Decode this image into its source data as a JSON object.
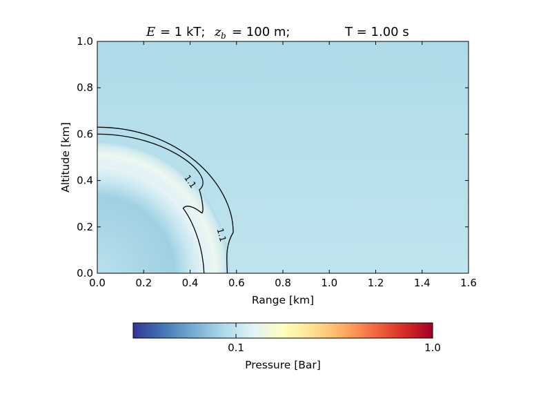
{
  "chart_data": {
    "type": "heatmap",
    "title": {
      "energy_symbol": "E",
      "energy_value": "= 1 kT;",
      "burst_symbol": "z",
      "burst_subscript": "b",
      "burst_value": "= 100 m;",
      "time_text": "T =  1.00 s"
    },
    "xlabel": "Range [km]",
    "ylabel": "Altitude [km]",
    "xlim": [
      0.0,
      1.6
    ],
    "ylim": [
      0.0,
      1.0
    ],
    "xticks": [
      "0.0",
      "0.2",
      "0.4",
      "0.6",
      "0.8",
      "1.0",
      "1.2",
      "1.4",
      "1.6"
    ],
    "yticks": [
      "0.0",
      "0.2",
      "0.4",
      "0.6",
      "0.8",
      "1.0"
    ],
    "grid": false,
    "colormap": "RdYlBu_r",
    "colorbar": {
      "label": "Pressure [Bar]",
      "scale": "log",
      "min": 0.03,
      "max": 1.0,
      "ticks": [
        {
          "value": 0.1,
          "label": "0.1"
        },
        {
          "value": 1.0,
          "label": "1.0"
        }
      ],
      "placement": "bottom-horizontal"
    },
    "background_pressure": 0.085,
    "shock_front": {
      "outer_radius_km": 0.63,
      "inner_radius_km": 0.6,
      "base_inner_km": 0.46,
      "base_outer_km": 0.56
    },
    "contours": [
      {
        "level": 1.1,
        "label": "1.1"
      },
      {
        "level": 1.1,
        "label": "1.1"
      }
    ]
  }
}
